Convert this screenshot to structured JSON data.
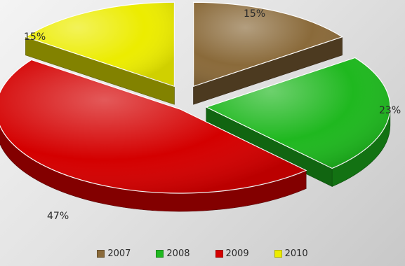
{
  "chart_data": {
    "type": "pie",
    "style": "3d-exploded",
    "slices": [
      {
        "label": "2007",
        "value": 15,
        "display": "15%",
        "color": "#8a6a3a"
      },
      {
        "label": "2008",
        "value": 23,
        "display": "23%",
        "color": "#1fb81f"
      },
      {
        "label": "2009",
        "value": 47,
        "display": "47%",
        "color": "#d40000"
      },
      {
        "label": "2010",
        "value": 15,
        "display": "15%",
        "color": "#ecec00"
      }
    ],
    "legend_position": "bottom"
  }
}
